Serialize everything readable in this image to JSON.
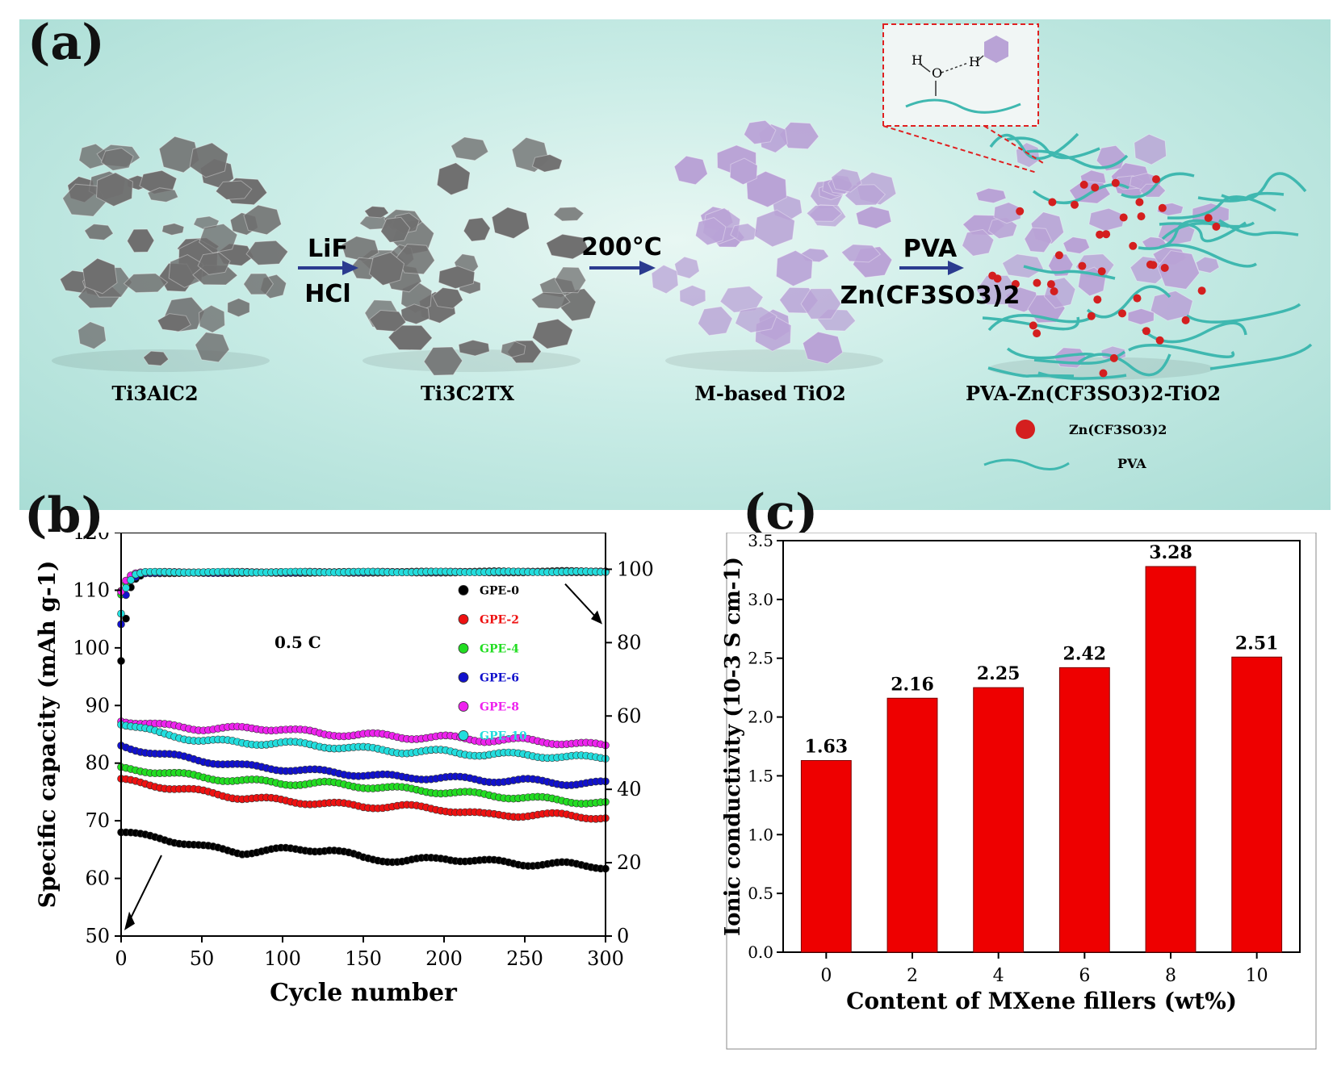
{
  "panel_labels": {
    "a": "(a)",
    "b": "(b)",
    "c": "(c)"
  },
  "panel_a": {
    "stages": [
      "Ti3AlC2",
      "Ti3C2TX",
      "M-based TiO2",
      "PVA-Zn(CF3SO3)2-TiO2"
    ],
    "arrows": [
      {
        "top": "LiF",
        "bottom": "HCl"
      },
      {
        "top": "200°C",
        "bottom": ""
      },
      {
        "top": "PVA",
        "bottom": "Zn(CF3SO3)2"
      }
    ],
    "legend": {
      "salt": "Zn(CF3SO3)2",
      "polymer": "PVA"
    },
    "inset_atoms": {
      "h1": "H",
      "o": "O",
      "h2": "H"
    },
    "colors": {
      "mxene": "#6f6f6f",
      "tio2": "#b9a3d6",
      "pva": "#3fb8b0",
      "salt": "#d41f1f",
      "arrow": "#2b3b8f"
    }
  },
  "chart_data": [
    {
      "type": "scatter",
      "id": "b",
      "xlabel": "Cycle number",
      "ylabel": "Specific capacity (mAh g-1)",
      "ylabel_right": "",
      "xlim": [
        0,
        300
      ],
      "ylim": [
        50,
        120
      ],
      "y2lim": [
        0,
        110
      ],
      "xticks": [
        0,
        50,
        100,
        150,
        200,
        250,
        300
      ],
      "yticks": [
        50,
        60,
        70,
        80,
        90,
        100,
        110,
        120
      ],
      "y2ticks": [
        0,
        20,
        40,
        60,
        80,
        100
      ],
      "annotation": "0.5 C",
      "legend_position": "right",
      "series": [
        {
          "name": "GPE-0",
          "color": "#000000",
          "capacity": [
            [
              0,
              68
            ],
            [
              10,
              67.5
            ],
            [
              25,
              67
            ],
            [
              50,
              65.5
            ],
            [
              75,
              64.5
            ],
            [
              100,
              65
            ],
            [
              130,
              65
            ],
            [
              150,
              63.5
            ],
            [
              175,
              63
            ],
            [
              200,
              63.5
            ],
            [
              225,
              63
            ],
            [
              250,
              62.5
            ],
            [
              275,
              62.5
            ],
            [
              300,
              62
            ]
          ],
          "efficiency": [
            [
              0,
              75
            ],
            [
              2,
              83
            ],
            [
              4,
              90
            ],
            [
              6,
              95
            ],
            [
              8,
              97
            ],
            [
              15,
              99
            ],
            [
              300,
              99.5
            ]
          ]
        },
        {
          "name": "GPE-2",
          "color": "#ee1111",
          "capacity": [
            [
              0,
              77
            ],
            [
              25,
              76
            ],
            [
              50,
              75
            ],
            [
              75,
              74
            ],
            [
              100,
              73.5
            ],
            [
              125,
              73
            ],
            [
              150,
              72.5
            ],
            [
              175,
              72.5
            ],
            [
              200,
              72
            ],
            [
              225,
              71
            ],
            [
              250,
              71
            ],
            [
              275,
              71
            ],
            [
              300,
              70.5
            ]
          ],
          "efficiency": [
            [
              0,
              94
            ],
            [
              4,
              97
            ],
            [
              10,
              99
            ],
            [
              300,
              99.3
            ]
          ]
        },
        {
          "name": "GPE-4",
          "color": "#22dd22",
          "capacity": [
            [
              0,
              79
            ],
            [
              25,
              78.5
            ],
            [
              50,
              77.5
            ],
            [
              75,
              77
            ],
            [
              100,
              76.5
            ],
            [
              125,
              76.5
            ],
            [
              150,
              76
            ],
            [
              175,
              75.5
            ],
            [
              200,
              75
            ],
            [
              225,
              74.5
            ],
            [
              250,
              74
            ],
            [
              275,
              73.5
            ],
            [
              300,
              73
            ]
          ],
          "efficiency": [
            [
              0,
              93
            ],
            [
              4,
              97
            ],
            [
              10,
              99
            ],
            [
              300,
              99.3
            ]
          ]
        },
        {
          "name": "GPE-6",
          "color": "#1111cc",
          "capacity": [
            [
              0,
              83
            ],
            [
              25,
              81.5
            ],
            [
              50,
              80.5
            ],
            [
              75,
              79.5
            ],
            [
              100,
              79
            ],
            [
              125,
              78.5
            ],
            [
              150,
              78
            ],
            [
              175,
              77.5
            ],
            [
              200,
              77.5
            ],
            [
              225,
              77
            ],
            [
              250,
              77
            ],
            [
              275,
              76.5
            ],
            [
              300,
              76.5
            ]
          ],
          "efficiency": [
            [
              0,
              85
            ],
            [
              3,
              93
            ],
            [
              6,
              97
            ],
            [
              12,
              99
            ],
            [
              300,
              99.3
            ]
          ]
        },
        {
          "name": "GPE-8",
          "color": "#ee22ee",
          "capacity": [
            [
              0,
              87.5
            ],
            [
              25,
              86.5
            ],
            [
              50,
              86
            ],
            [
              75,
              86
            ],
            [
              100,
              86
            ],
            [
              125,
              85
            ],
            [
              150,
              85
            ],
            [
              175,
              84.5
            ],
            [
              200,
              84.5
            ],
            [
              225,
              84
            ],
            [
              250,
              84
            ],
            [
              275,
              83.5
            ],
            [
              300,
              83
            ]
          ],
          "efficiency": [
            [
              0,
              94
            ],
            [
              4,
              98
            ],
            [
              10,
              99.2
            ],
            [
              300,
              99.3
            ]
          ]
        },
        {
          "name": "GPE-10",
          "color": "#22dddd",
          "capacity": [
            [
              0,
              87
            ],
            [
              25,
              85
            ],
            [
              50,
              84
            ],
            [
              75,
              83.5
            ],
            [
              100,
              83.5
            ],
            [
              125,
              83
            ],
            [
              150,
              82.5
            ],
            [
              175,
              82
            ],
            [
              200,
              82
            ],
            [
              225,
              81.5
            ],
            [
              250,
              81.5
            ],
            [
              275,
              81
            ],
            [
              300,
              81
            ]
          ],
          "efficiency": [
            [
              0,
              88
            ],
            [
              3,
              95
            ],
            [
              8,
              98.5
            ],
            [
              15,
              99.2
            ],
            [
              300,
              99.3
            ]
          ]
        }
      ]
    },
    {
      "type": "bar",
      "id": "c",
      "xlabel": "Content of MXene fillers (wt%)",
      "ylabel": "Ionic conductivity (10-3 S cm-1)",
      "categories": [
        "0",
        "2",
        "4",
        "6",
        "8",
        "10"
      ],
      "values": [
        1.63,
        2.16,
        2.25,
        2.42,
        3.28,
        2.51
      ],
      "data_labels": [
        "1.63",
        "2.16",
        "2.25",
        "2.42",
        "3.28",
        "2.51"
      ],
      "ylim": [
        0.0,
        3.5
      ],
      "yticks": [
        "0.0",
        "0.5",
        "1.0",
        "1.5",
        "2.0",
        "2.5",
        "3.0",
        "3.5"
      ],
      "color": "#ee0000"
    }
  ]
}
